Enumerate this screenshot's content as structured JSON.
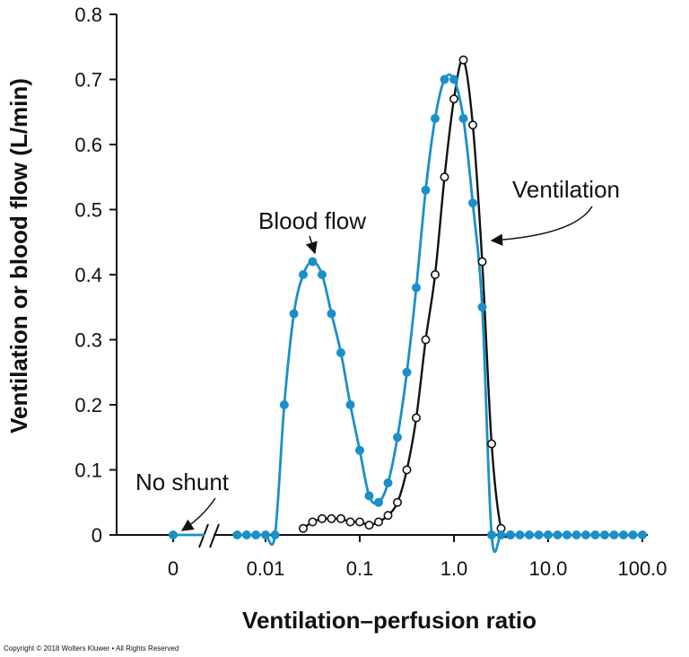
{
  "copyright": "Copyright © 2018 Wolters Kluwer • All Rights Reserved",
  "colors": {
    "blood_flow": "#1b8fc9",
    "ventilation": "#111111",
    "axis": "#111111"
  },
  "chart_data": {
    "type": "line",
    "title": "",
    "xlabel": "Ventilation–perfusion ratio",
    "ylabel": "Ventilation or blood flow (L/min)",
    "x_scale": "log",
    "x_break": "axis break between 0 and 0.01",
    "xlim": [
      0.0025,
      100
    ],
    "ylim": [
      0,
      0.8
    ],
    "x_ticks": [
      {
        "value": 0,
        "label": "0"
      },
      {
        "value": 0.01,
        "label": "0.01"
      },
      {
        "value": 0.1,
        "label": "0.1"
      },
      {
        "value": 1,
        "label": "1.0"
      },
      {
        "value": 10,
        "label": "10.0"
      },
      {
        "value": 100,
        "label": "100.0"
      }
    ],
    "y_ticks": [
      {
        "value": 0,
        "label": "0"
      },
      {
        "value": 0.1,
        "label": "0.1"
      },
      {
        "value": 0.2,
        "label": "0.2"
      },
      {
        "value": 0.3,
        "label": "0.3"
      },
      {
        "value": 0.4,
        "label": "0.4"
      },
      {
        "value": 0.5,
        "label": "0.5"
      },
      {
        "value": 0.6,
        "label": "0.6"
      },
      {
        "value": 0.7,
        "label": "0.7"
      },
      {
        "value": 0.8,
        "label": "0.8"
      }
    ],
    "grid": false,
    "series": [
      {
        "name": "Blood flow",
        "marker": "filled-circle",
        "shunt_point": {
          "x": 0,
          "y": 0
        },
        "points": [
          [
            0.005,
            0.0
          ],
          [
            0.0063,
            0.0
          ],
          [
            0.0079,
            0.0
          ],
          [
            0.01,
            0.0
          ],
          [
            0.0126,
            0.0
          ],
          [
            0.0158,
            0.2
          ],
          [
            0.02,
            0.34
          ],
          [
            0.0251,
            0.4
          ],
          [
            0.0316,
            0.42
          ],
          [
            0.0398,
            0.4
          ],
          [
            0.0501,
            0.34
          ],
          [
            0.0631,
            0.28
          ],
          [
            0.0794,
            0.2
          ],
          [
            0.1,
            0.13
          ],
          [
            0.1259,
            0.06
          ],
          [
            0.1585,
            0.05
          ],
          [
            0.1995,
            0.08
          ],
          [
            0.2512,
            0.15
          ],
          [
            0.3162,
            0.25
          ],
          [
            0.3981,
            0.38
          ],
          [
            0.5012,
            0.53
          ],
          [
            0.631,
            0.64
          ],
          [
            0.7943,
            0.7
          ],
          [
            1.0,
            0.7
          ],
          [
            1.2589,
            0.64
          ],
          [
            1.5849,
            0.51
          ],
          [
            1.9953,
            0.35
          ],
          [
            2.5119,
            0.0
          ],
          [
            3.1623,
            0.0
          ],
          [
            3.9811,
            0.0
          ],
          [
            5.0119,
            0.0
          ],
          [
            6.3096,
            0.0
          ],
          [
            7.9433,
            0.0
          ],
          [
            10.0,
            0.0
          ],
          [
            12.589,
            0.0
          ],
          [
            15.849,
            0.0
          ],
          [
            19.953,
            0.0
          ],
          [
            25.119,
            0.0
          ],
          [
            31.623,
            0.0
          ],
          [
            39.811,
            0.0
          ],
          [
            50.119,
            0.0
          ],
          [
            63.096,
            0.0
          ],
          [
            79.433,
            0.0
          ],
          [
            100.0,
            0.0
          ]
        ]
      },
      {
        "name": "Ventilation",
        "marker": "open-circle",
        "points": [
          [
            0.0251,
            0.01
          ],
          [
            0.0316,
            0.02
          ],
          [
            0.0398,
            0.025
          ],
          [
            0.0501,
            0.025
          ],
          [
            0.0631,
            0.025
          ],
          [
            0.0794,
            0.02
          ],
          [
            0.1,
            0.02
          ],
          [
            0.1259,
            0.015
          ],
          [
            0.1585,
            0.02
          ],
          [
            0.1995,
            0.03
          ],
          [
            0.2512,
            0.05
          ],
          [
            0.3162,
            0.1
          ],
          [
            0.3981,
            0.18
          ],
          [
            0.5012,
            0.3
          ],
          [
            0.631,
            0.4
          ],
          [
            0.7943,
            0.55
          ],
          [
            1.0,
            0.67
          ],
          [
            1.2589,
            0.73
          ],
          [
            1.5849,
            0.63
          ],
          [
            1.9953,
            0.42
          ],
          [
            2.5119,
            0.14
          ],
          [
            3.1623,
            0.01
          ],
          [
            3.9811,
            0.0
          ]
        ]
      }
    ],
    "annotations": [
      {
        "text": "Blood flow",
        "target": [
          0.0316,
          0.42
        ]
      },
      {
        "text": "Ventilation",
        "target": [
          2.2,
          0.42
        ]
      },
      {
        "text": "No  shunt",
        "target": [
          0,
          0
        ]
      }
    ]
  }
}
